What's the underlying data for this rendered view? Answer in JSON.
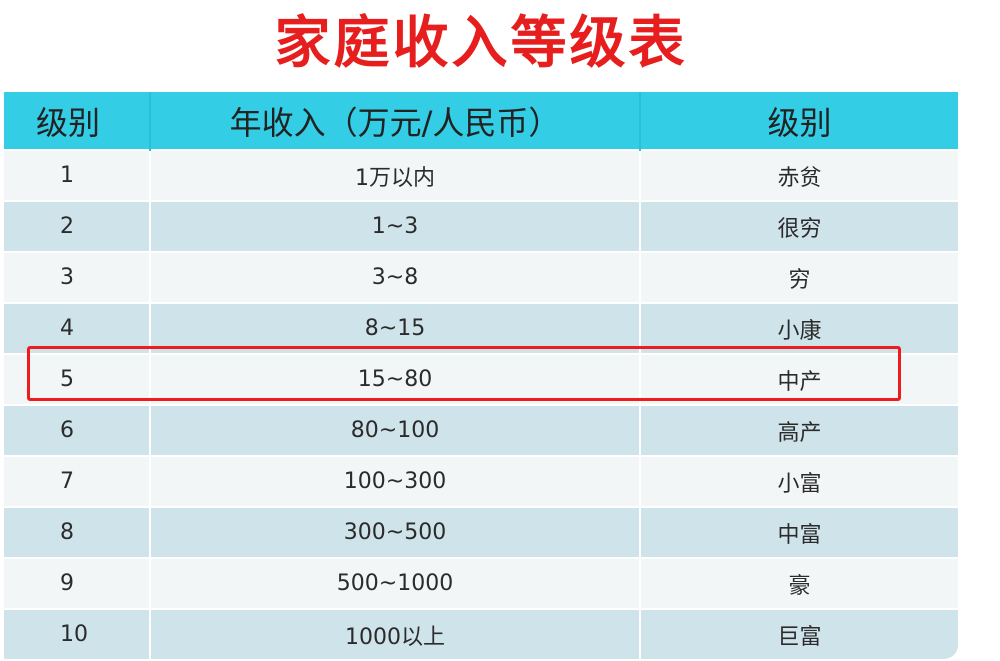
{
  "title": "家庭收入等级表",
  "table": {
    "headers": [
      "级别",
      "年收入（万元/人民币）",
      "级别"
    ],
    "rows": [
      {
        "level": "1",
        "income": "1万以内",
        "grade": "赤贫"
      },
      {
        "level": "2",
        "income": "1~3",
        "grade": "很穷"
      },
      {
        "level": "3",
        "income": "3~8",
        "grade": "穷"
      },
      {
        "level": "4",
        "income": "8~15",
        "grade": "小康"
      },
      {
        "level": "5",
        "income": "15~80",
        "grade": "中产"
      },
      {
        "level": "6",
        "income": "80~100",
        "grade": "高产"
      },
      {
        "level": "7",
        "income": "100~300",
        "grade": "小富"
      },
      {
        "level": "8",
        "income": "300~500",
        "grade": "中富"
      },
      {
        "level": "9",
        "income": "500~1000",
        "grade": "豪"
      },
      {
        "level": "10",
        "income": "1000以上",
        "grade": "巨富"
      }
    ]
  },
  "highlighted_row_level": "5",
  "colors": {
    "title": "#e61e1e",
    "header_background": "#33cde6",
    "row_light": "#f3f6f7",
    "row_dark": "#cfe3ea",
    "highlight_border": "#ee1c1c"
  }
}
